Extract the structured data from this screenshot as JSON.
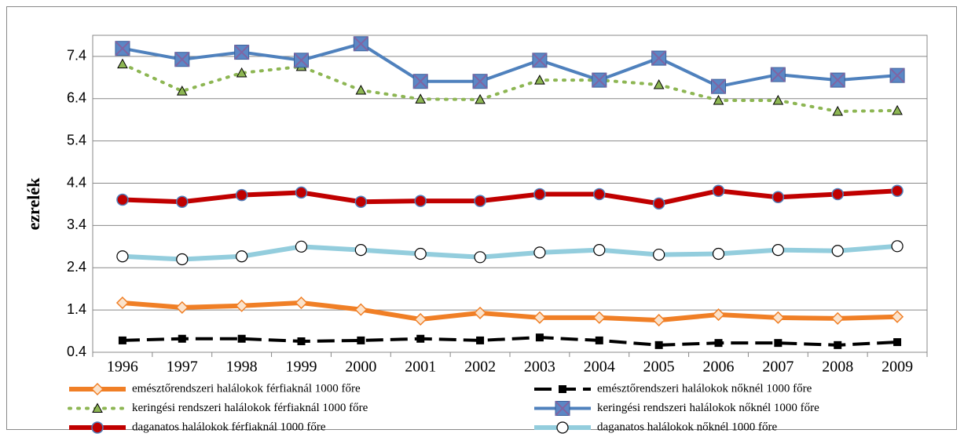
{
  "chart_data": {
    "type": "line",
    "y_label": "ezrelék",
    "categories": [
      "1996",
      "1997",
      "1998",
      "1999",
      "2000",
      "2001",
      "2002",
      "2003",
      "2004",
      "2005",
      "2006",
      "2007",
      "2008",
      "2009"
    ],
    "ylim": [
      0.4,
      7.9
    ],
    "yticks": [
      0.4,
      1.4,
      2.4,
      3.4,
      4.4,
      5.4,
      6.4,
      7.4
    ],
    "grid": true,
    "legend": "bottom",
    "series": [
      {
        "name": "emésztőrendszeri halálokok férfiaknál 1000 főre",
        "color": "#f07f26",
        "marker": "diamond",
        "line_style": "solid",
        "values": [
          1.57,
          1.46,
          1.5,
          1.57,
          1.41,
          1.18,
          1.33,
          1.22,
          1.22,
          1.16,
          1.29,
          1.22,
          1.2,
          1.24
        ]
      },
      {
        "name": "emésztőrendszeri halálokok nőknél 1000 főre",
        "color": "#000000",
        "marker": "square",
        "line_style": "dashed",
        "values": [
          0.68,
          0.72,
          0.72,
          0.66,
          0.68,
          0.72,
          0.68,
          0.75,
          0.68,
          0.57,
          0.62,
          0.62,
          0.57,
          0.64
        ]
      },
      {
        "name": "keringési rendszeri halálokok férfiaknál 1000 főre",
        "color": "#8db653",
        "marker": "triangle",
        "line_style": "dotted",
        "values": [
          7.22,
          6.58,
          7.01,
          7.16,
          6.6,
          6.39,
          6.38,
          6.84,
          6.84,
          6.73,
          6.36,
          6.36,
          6.1,
          6.12
        ]
      },
      {
        "name": "keringési rendszeri halálokok nőknél 1000 főre",
        "color": "#4f81bd",
        "marker": "xsquare",
        "line_style": "solid",
        "values": [
          7.59,
          7.33,
          7.5,
          7.31,
          7.7,
          6.81,
          6.81,
          7.31,
          6.84,
          7.36,
          6.69,
          6.97,
          6.84,
          6.95
        ]
      },
      {
        "name": "daganatos halálokok férfiaknál 1000 főre",
        "color": "#c00000",
        "marker": "circle-filled",
        "line_style": "solid",
        "values": [
          4.01,
          3.96,
          4.12,
          4.18,
          3.96,
          3.98,
          3.98,
          4.14,
          4.14,
          3.92,
          4.22,
          4.07,
          4.14,
          4.22
        ]
      },
      {
        "name": "daganatos halálokok nőknél 1000 főre",
        "color": "#93cddd",
        "marker": "circle-open",
        "line_style": "solid",
        "values": [
          2.67,
          2.6,
          2.67,
          2.9,
          2.82,
          2.73,
          2.65,
          2.76,
          2.82,
          2.71,
          2.73,
          2.82,
          2.8,
          2.91
        ]
      }
    ]
  }
}
